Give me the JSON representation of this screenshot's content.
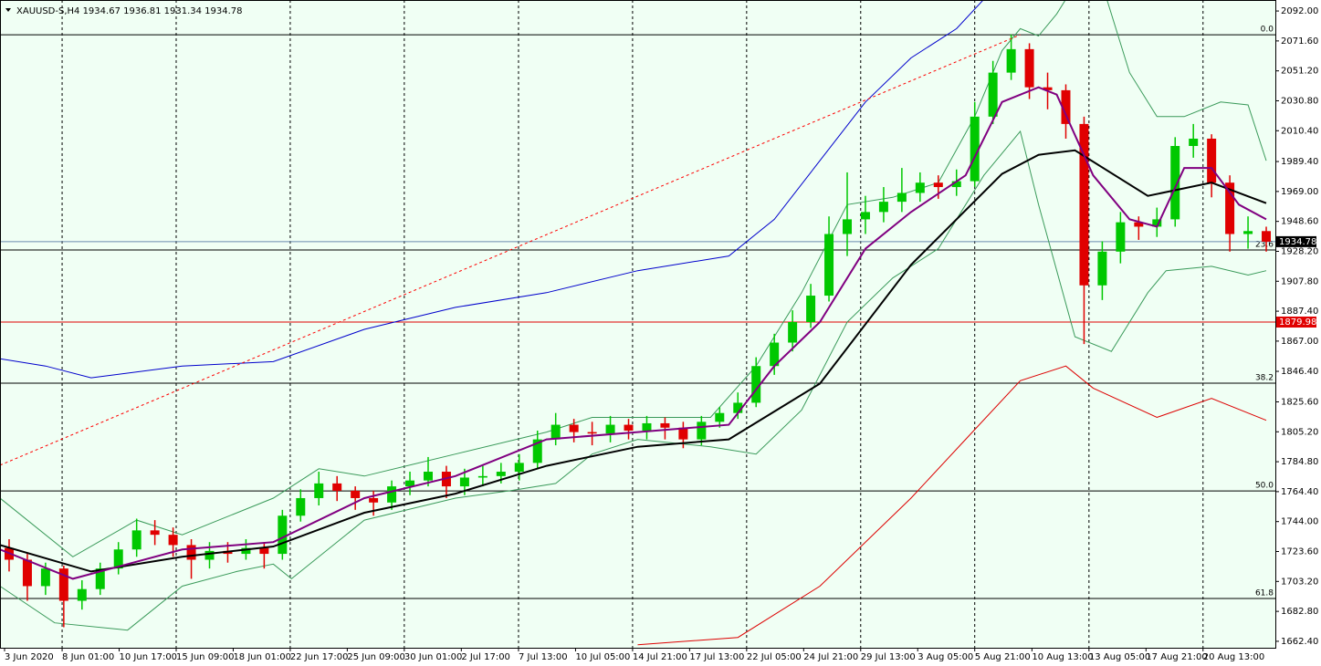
{
  "chart_data": {
    "type": "candlestick",
    "title": "XAUUSD-S,H4  1934.67 1936.81 1931.34 1934.78",
    "up_color": "#00c800",
    "down_color": "#e00000",
    "open": [
      1726,
      1718,
      1700,
      1712,
      1690,
      1698,
      1712,
      1725,
      1738,
      1735,
      1728,
      1718,
      1724,
      1722,
      1726,
      1722,
      1748,
      1760,
      1770,
      1765,
      1760,
      1757,
      1768,
      1772,
      1778,
      1768,
      1774,
      1775,
      1778,
      1784,
      1800,
      1810,
      1805,
      1804,
      1810,
      1806,
      1811,
      1808,
      1800,
      1812,
      1818,
      1825,
      1850,
      1866,
      1880,
      1898,
      1940,
      1950,
      1955,
      1962,
      1968,
      1975,
      1972,
      1976,
      2020,
      2050,
      2066,
      2040,
      2038,
      2015,
      1905,
      1928,
      1948,
      1945,
      1950,
      2000,
      2005,
      1975,
      1940,
      1942
    ],
    "high": [
      1732,
      1722,
      1716,
      1714,
      1704,
      1716,
      1730,
      1746,
      1745,
      1740,
      1732,
      1730,
      1730,
      1732,
      1730,
      1752,
      1766,
      1778,
      1775,
      1768,
      1765,
      1772,
      1778,
      1788,
      1782,
      1780,
      1782,
      1784,
      1790,
      1806,
      1818,
      1814,
      1812,
      1816,
      1814,
      1816,
      1815,
      1812,
      1816,
      1822,
      1832,
      1856,
      1872,
      1888,
      1906,
      1952,
      1982,
      1966,
      1972,
      1985,
      1982,
      1980,
      1984,
      2030,
      2058,
      2076,
      2070,
      2050,
      2042,
      2020,
      1935,
      1955,
      1952,
      1958,
      2006,
      2015,
      2008,
      1980,
      1952,
      1945
    ],
    "low": [
      1710,
      1690,
      1694,
      1672,
      1684,
      1694,
      1708,
      1720,
      1728,
      1720,
      1705,
      1712,
      1716,
      1718,
      1712,
      1718,
      1744,
      1755,
      1758,
      1752,
      1748,
      1752,
      1762,
      1768,
      1760,
      1762,
      1768,
      1770,
      1772,
      1780,
      1796,
      1798,
      1796,
      1798,
      1800,
      1800,
      1800,
      1794,
      1796,
      1808,
      1814,
      1822,
      1844,
      1860,
      1876,
      1894,
      1925,
      1940,
      1948,
      1955,
      1962,
      1964,
      1966,
      1972,
      2015,
      2045,
      2032,
      2025,
      2005,
      1865,
      1895,
      1920,
      1936,
      1938,
      1945,
      1992,
      1965,
      1928,
      1930,
      1928
    ],
    "close": [
      1718,
      1700,
      1712,
      1690,
      1698,
      1712,
      1725,
      1738,
      1735,
      1728,
      1718,
      1724,
      1722,
      1726,
      1722,
      1748,
      1760,
      1770,
      1765,
      1760,
      1757,
      1768,
      1772,
      1778,
      1768,
      1774,
      1775,
      1778,
      1784,
      1800,
      1810,
      1805,
      1804,
      1810,
      1806,
      1811,
      1808,
      1800,
      1812,
      1818,
      1825,
      1850,
      1866,
      1880,
      1898,
      1940,
      1950,
      1955,
      1962,
      1968,
      1975,
      1972,
      1976,
      2020,
      2050,
      2066,
      2040,
      2038,
      2015,
      1905,
      1928,
      1948,
      1945,
      1950,
      2000,
      2005,
      1975,
      1940,
      1942,
      1934.78
    ],
    "xlim": [
      0,
      70
    ],
    "xticks": [
      {
        "value": 0.25,
        "label": "3 Jun 2020"
      },
      {
        "value": 3.41,
        "label": "8 Jun 01:00"
      },
      {
        "value": 6.54,
        "label": "10 Jun 17:00"
      },
      {
        "value": 9.67,
        "label": "15 Jun 09:00"
      },
      {
        "value": 12.8,
        "label": "18 Jun 01:00"
      },
      {
        "value": 15.93,
        "label": "22 Jun 17:00"
      },
      {
        "value": 19.06,
        "label": "25 Jun 09:00"
      },
      {
        "value": 22.19,
        "label": "30 Jun 01:00"
      },
      {
        "value": 25.32,
        "label": "2 Jul 17:00"
      },
      {
        "value": 28.46,
        "label": "7 Jul 13:00"
      },
      {
        "value": 31.59,
        "label": "10 Jul 05:00"
      },
      {
        "value": 34.72,
        "label": "14 Jul 21:00"
      },
      {
        "value": 37.85,
        "label": "17 Jul 13:00"
      },
      {
        "value": 40.98,
        "label": "22 Jul 05:00"
      },
      {
        "value": 44.11,
        "label": "24 Jul 21:00"
      },
      {
        "value": 47.24,
        "label": "29 Jul 13:00"
      },
      {
        "value": 50.37,
        "label": "3 Aug 05:00"
      },
      {
        "value": 53.5,
        "label": "5 Aug 21:00"
      },
      {
        "value": 56.64,
        "label": "10 Aug 13:00"
      },
      {
        "value": 59.77,
        "label": "13 Aug 05:00"
      },
      {
        "value": 62.9,
        "label": "17 Aug 21:00"
      },
      {
        "value": 66.03,
        "label": "20 Aug 13:00"
      }
    ],
    "ylim": [
      1658,
      2099.5
    ],
    "yticks": [
      {
        "value": 1662.4,
        "label": "1662.40"
      },
      {
        "value": 1682.8,
        "label": "1682.80"
      },
      {
        "value": 1703.2,
        "label": "1703.20"
      },
      {
        "value": 1723.6,
        "label": "1723.60"
      },
      {
        "value": 1744,
        "label": "1744.00"
      },
      {
        "value": 1764.4,
        "label": "1764.40"
      },
      {
        "value": 1784.8,
        "label": "1784.80"
      },
      {
        "value": 1805.2,
        "label": "1805.20"
      },
      {
        "value": 1825.6,
        "label": "1825.60"
      },
      {
        "value": 1846.4,
        "label": "1846.40"
      },
      {
        "value": 1867,
        "label": "1867.00"
      },
      {
        "value": 1887.4,
        "label": "1887.40"
      },
      {
        "value": 1907.8,
        "label": "1907.80"
      },
      {
        "value": 1928.2,
        "label": "1928.20"
      },
      {
        "value": 1948.6,
        "label": "1948.60"
      },
      {
        "value": 1969,
        "label": "1969.00"
      },
      {
        "value": 1989.4,
        "label": "1989.40"
      },
      {
        "value": 2010.4,
        "label": "2010.40"
      },
      {
        "value": 2030.8,
        "label": "2030.80"
      },
      {
        "value": 2051.2,
        "label": "2051.20"
      },
      {
        "value": 2071.6,
        "label": "2071.60"
      },
      {
        "value": 2092,
        "label": "2092.00"
      }
    ],
    "grid": true,
    "levels": [
      {
        "value": 2075.8,
        "label": "0.0"
      },
      {
        "value": 1929.1,
        "label": "23.6"
      },
      {
        "value": 1838.3,
        "label": "38.2"
      },
      {
        "value": 1764.9,
        "label": "50.0"
      },
      {
        "value": 1691.6,
        "label": "61.8"
      }
    ],
    "price_lines": [
      {
        "value": 1934.78,
        "color": "#6a8caf",
        "box": "#000000"
      },
      {
        "value": 1879.98,
        "color": "#e00000",
        "box": "#e00000"
      }
    ],
    "overlays": [
      {
        "color": "#3a9a5a",
        "width": 1,
        "x": [
          0,
          4,
          7.5,
          10,
          15,
          17.5,
          20,
          25,
          30,
          32.5,
          35,
          39,
          41.5,
          44,
          46.5,
          49,
          51.5,
          53.5,
          55,
          56,
          57,
          58,
          59,
          60.5,
          62,
          63.5,
          65,
          67,
          68.5,
          69.5
        ],
        "values": [
          1760,
          1720,
          1745,
          1735,
          1760,
          1780,
          1775,
          1790,
          1805,
          1815,
          1815,
          1815,
          1850,
          1900,
          1960,
          1965,
          1975,
          2020,
          2065,
          2080,
          2075,
          2090,
          2110,
          2110,
          2050,
          2020,
          2020,
          2030,
          2028,
          1990
        ]
      },
      {
        "color": "#3a9a5a",
        "width": 1,
        "x": [
          0,
          3,
          7,
          10,
          13,
          15,
          16,
          20,
          25,
          28,
          30.5,
          32.5,
          35,
          39,
          41.5,
          44,
          46.5,
          49,
          51.5,
          54,
          56,
          57,
          59,
          61,
          63,
          64,
          66.5,
          68.5,
          69.5
        ],
        "values": [
          1700,
          1675,
          1670,
          1700,
          1710,
          1715,
          1705,
          1745,
          1760,
          1765,
          1770,
          1790,
          1800,
          1795,
          1790,
          1820,
          1880,
          1910,
          1930,
          1980,
          2010,
          1960,
          1870,
          1860,
          1900,
          1915,
          1918,
          1912,
          1915
        ]
      },
      {
        "color": "#0000cc",
        "width": 1,
        "x": [
          0,
          2.5,
          5,
          10,
          15,
          20,
          25,
          30,
          35,
          40,
          42.5,
          45,
          47.5,
          50,
          52.5,
          54
        ],
        "values": [
          1855,
          1850,
          1842,
          1850,
          1853,
          1875,
          1890,
          1900,
          1915,
          1925,
          1950,
          1990,
          2030,
          2060,
          2080,
          2100
        ]
      },
      {
        "color": "#dd0000",
        "width": 1,
        "x": [
          35,
          40.5,
          45,
          50,
          53,
          56,
          58.5,
          60,
          63.5,
          66.5,
          69.5
        ],
        "values": [
          1660,
          1665,
          1700,
          1760,
          1800,
          1840,
          1850,
          1835,
          1815,
          1828,
          1813
        ]
      },
      {
        "color": "#000000",
        "width": 2,
        "x": [
          0,
          5,
          10,
          15,
          20,
          25,
          30,
          35,
          40,
          45,
          50,
          55,
          57,
          59,
          63,
          66.5,
          69.5
        ],
        "values": [
          1728,
          1710,
          1720,
          1727,
          1750,
          1763,
          1782,
          1795,
          1800,
          1838,
          1919,
          1981,
          1994,
          1997,
          1966,
          1975,
          1961
        ]
      },
      {
        "color": "#800080",
        "width": 2,
        "x": [
          0,
          4,
          10,
          15,
          20,
          25,
          30,
          35,
          40,
          42.5,
          45,
          47.5,
          50,
          53,
          55,
          57,
          58,
          60,
          62,
          63.5,
          65,
          66.5,
          68,
          69.5
        ],
        "values": [
          1725,
          1705,
          1725,
          1730,
          1760,
          1775,
          1800,
          1805,
          1810,
          1850,
          1880,
          1930,
          1955,
          1980,
          2030,
          2040,
          2035,
          1980,
          1950,
          1945,
          1985,
          1985,
          1960,
          1950
        ]
      },
      {
        "color": "#ff0000",
        "width": 1,
        "dash": true,
        "x": [
          0,
          56
        ],
        "values": [
          1782.4,
          2075.8
        ]
      }
    ]
  }
}
